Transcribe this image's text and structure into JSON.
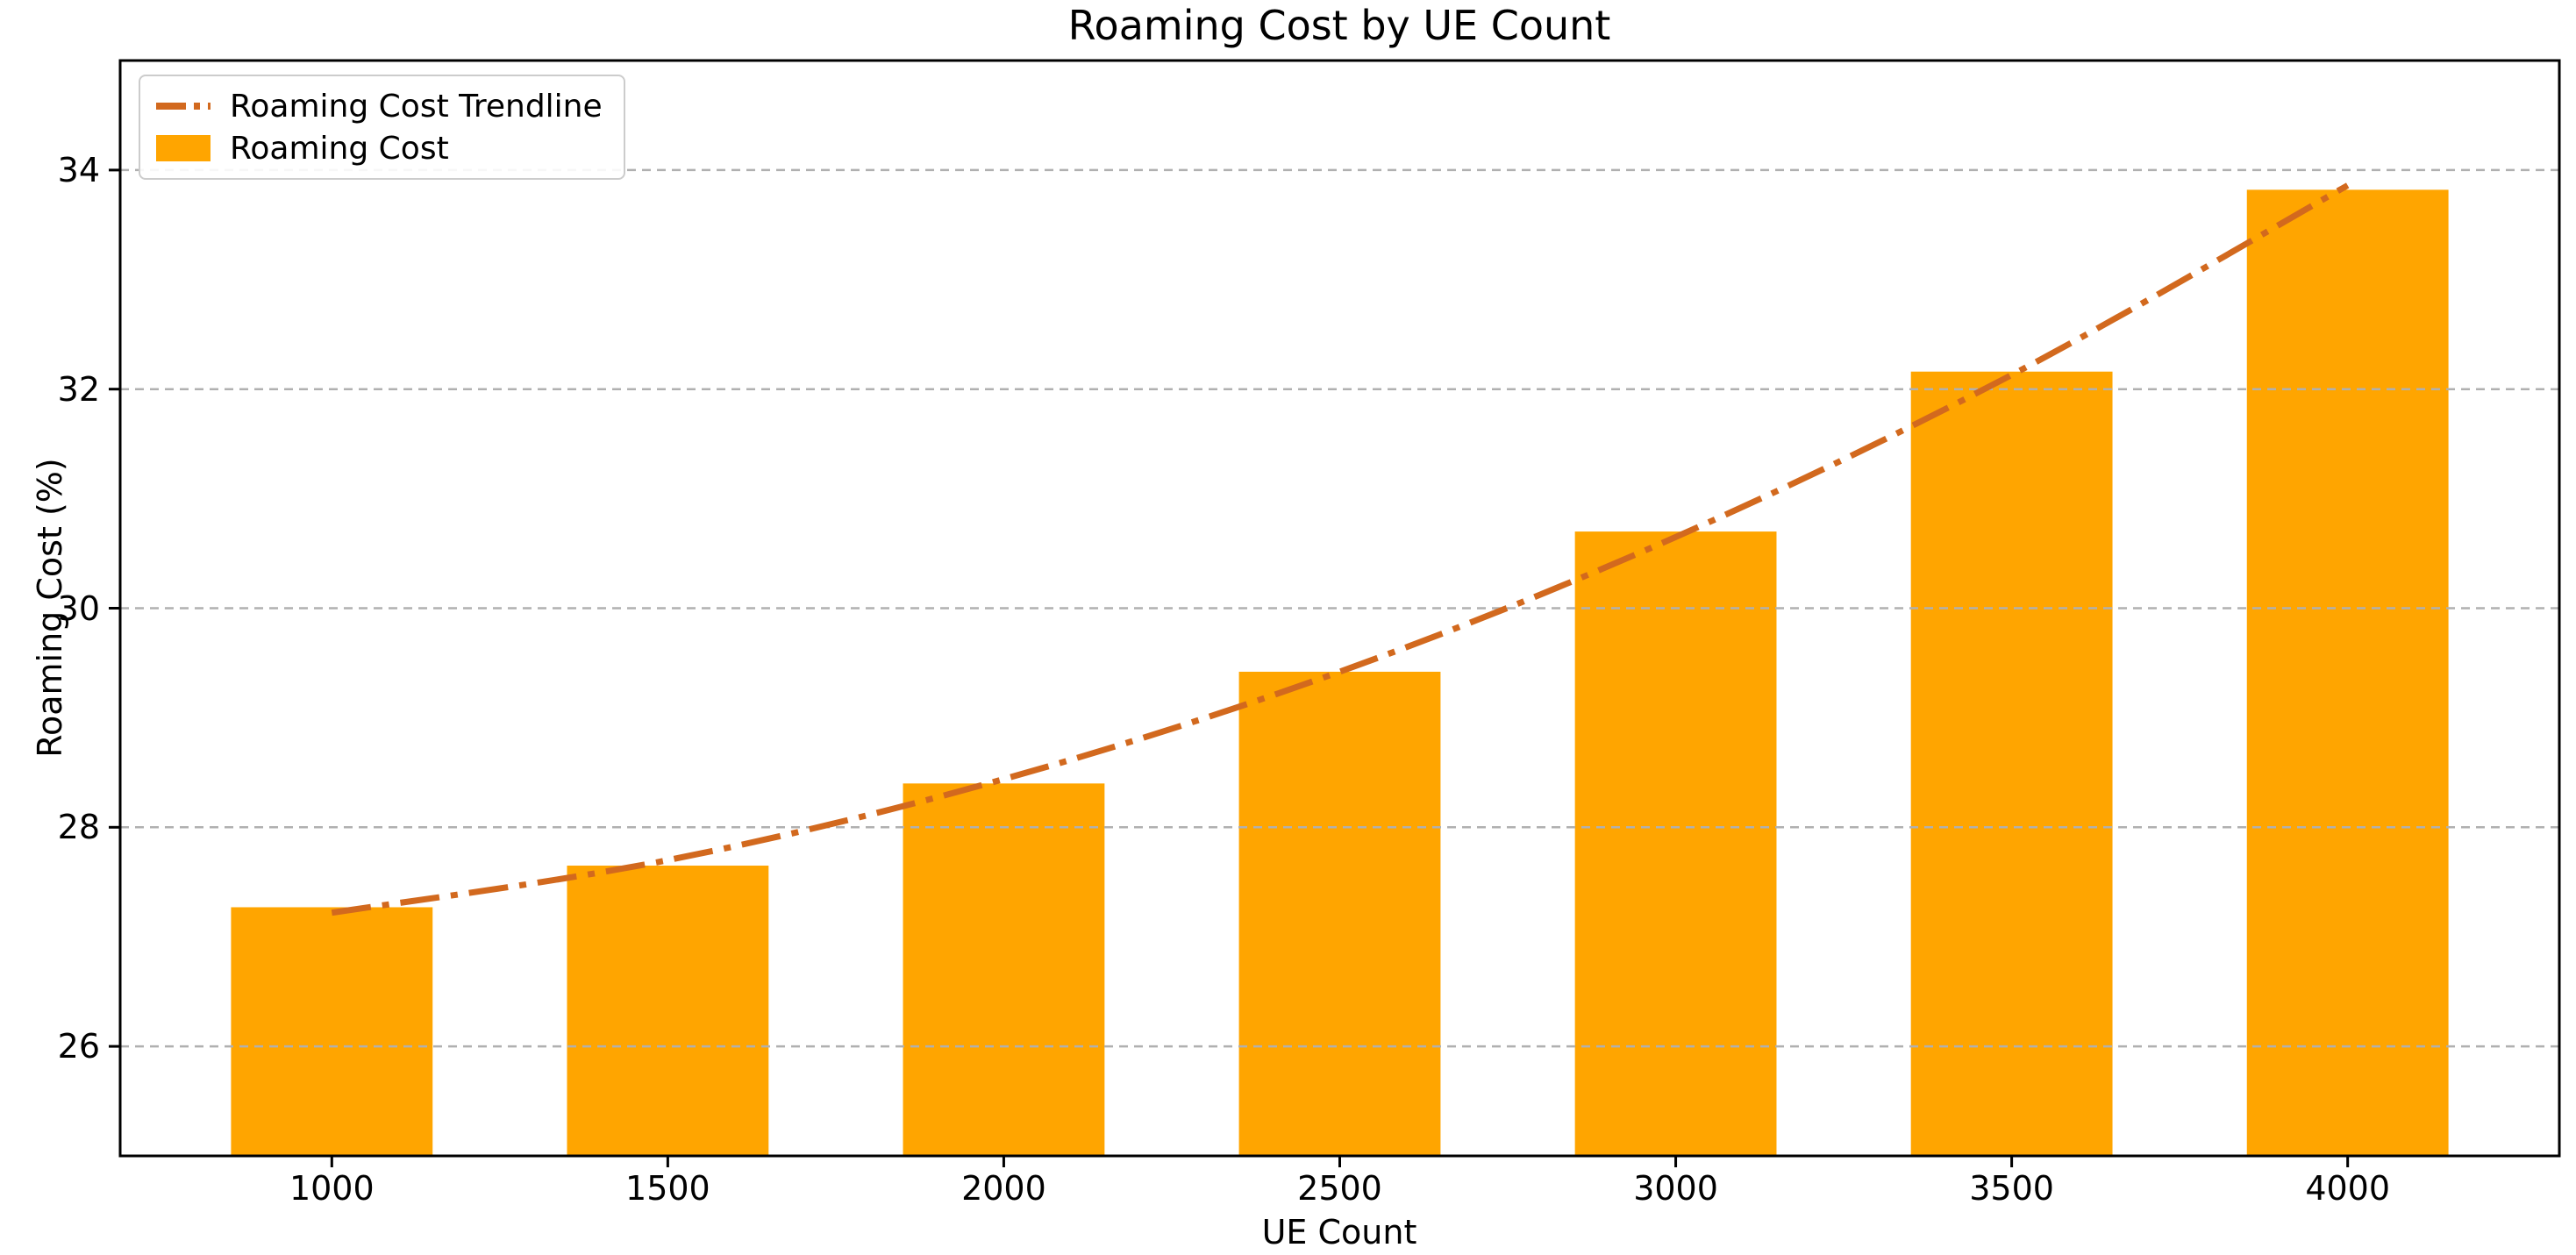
{
  "chart_data": {
    "type": "bar",
    "title": "Roaming Cost by UE Count",
    "xlabel": "UE Count",
    "ylabel": "Roaming Cost (%)",
    "categories": [
      1000,
      1500,
      2000,
      2500,
      3000,
      3500,
      4000
    ],
    "series": [
      {
        "name": "Roaming Cost",
        "type": "bar",
        "color": "#FFA500",
        "values": [
          27.27,
          27.65,
          28.4,
          29.42,
          30.7,
          32.16,
          33.82
        ]
      },
      {
        "name": "Roaming Cost Trendline",
        "type": "line",
        "style": "dashdot",
        "color": "#D2691E",
        "values": [
          27.22,
          27.7,
          28.44,
          29.42,
          30.65,
          32.13,
          33.86
        ]
      }
    ],
    "legend": {
      "position": "upper-left",
      "entries": [
        "Roaming Cost Trendline",
        "Roaming Cost"
      ]
    },
    "xlim": [
      685,
      4315
    ],
    "ylim": [
      25,
      35
    ],
    "yticks": [
      26,
      28,
      30,
      32,
      34
    ],
    "xticks": [
      1000,
      1500,
      2000,
      2500,
      3000,
      3500,
      4000
    ],
    "grid": "horizontal-dashed",
    "bar_width_units": 300,
    "colors": {
      "background": "#ffffff",
      "grid": "#b0b0b0",
      "spine": "#000000",
      "text": "#000000"
    }
  }
}
